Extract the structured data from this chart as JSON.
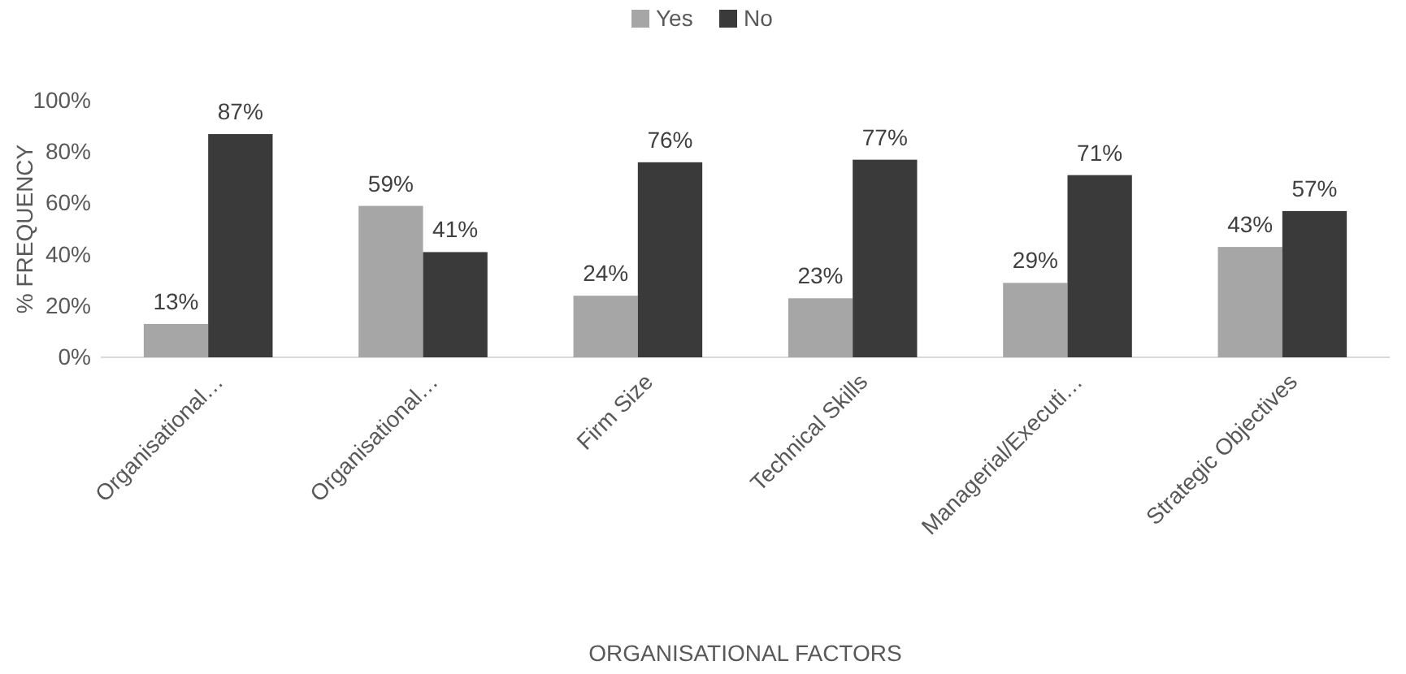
{
  "chart_data": {
    "type": "bar",
    "xlabel": "ORGANISATIONAL FACTORS",
    "ylabel": "% FREQUENCY",
    "categories": [
      "Organisational…",
      "Organisational…",
      "Firm Size",
      "Technical Skills",
      "Managerial/Executi…",
      "Strategic Objectives"
    ],
    "series": [
      {
        "name": "Yes",
        "color": "#a6a6a6",
        "values": [
          13,
          59,
          24,
          23,
          29,
          43
        ],
        "value_labels": [
          "13%",
          "59%",
          "24%",
          "23%",
          "29%",
          "43%"
        ]
      },
      {
        "name": "No",
        "color": "#3a3a3a",
        "values": [
          87,
          41,
          76,
          77,
          71,
          57
        ],
        "value_labels": [
          "87%",
          "41%",
          "76%",
          "77%",
          "71%",
          "57%"
        ]
      }
    ],
    "ylim": [
      0,
      100
    ],
    "yticks": [
      {
        "value": 0,
        "label": "0%"
      },
      {
        "value": 20,
        "label": "20%"
      },
      {
        "value": 40,
        "label": "40%"
      },
      {
        "value": 60,
        "label": "60%"
      },
      {
        "value": 80,
        "label": "80%"
      },
      {
        "value": 100,
        "label": "100%"
      }
    ],
    "legend": "top"
  }
}
